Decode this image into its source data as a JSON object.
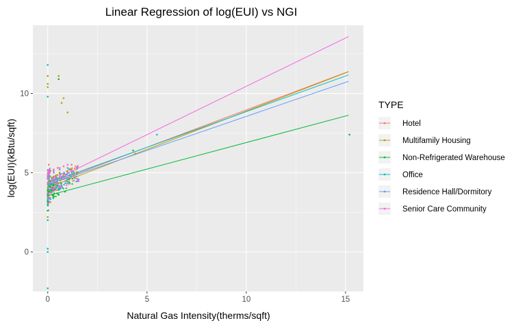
{
  "chart_data": {
    "type": "scatter",
    "title": "Linear Regression of log(EUI) vs NGI",
    "xlabel": "Natural Gas Intensity(therms/sqft)",
    "ylabel": "log(EUI)(kBtu/sqft)",
    "xlim": [
      -0.75,
      15.9
    ],
    "ylim": [
      -2.5,
      14.3
    ],
    "x_ticks": [
      0,
      5,
      10,
      15
    ],
    "y_ticks": [
      0,
      5,
      10
    ],
    "grid": true,
    "legend_position": "right",
    "legend": {
      "title": "TYPE",
      "entries": [
        "Hotel",
        "Multifamily Housing",
        "Non-Refrigerated Warehouse",
        "Office",
        "Residence Hall/Dormitory",
        "Senior Care Community"
      ]
    },
    "series": [
      {
        "name": "Hotel",
        "color": "#F8766D",
        "fit": {
          "intercept": 4.25,
          "slope": 0.471,
          "x_range": [
            0,
            15.15
          ]
        },
        "points": [
          [
            0.0,
            4.8
          ],
          [
            0.1,
            5.0
          ],
          [
            0.3,
            5.2
          ],
          [
            0.5,
            5.3
          ],
          [
            0.8,
            5.4
          ],
          [
            1.2,
            5.5
          ],
          [
            1.5,
            5.4
          ],
          [
            0.0,
            4.3
          ],
          [
            0.05,
            5.5
          ]
        ]
      },
      {
        "name": "Multifamily Housing",
        "color": "#B79F00",
        "fit": {
          "intercept": 4.05,
          "slope": 0.483,
          "x_range": [
            0,
            15.15
          ]
        },
        "points": [
          [
            0.0,
            10.4
          ],
          [
            0.0,
            10.6
          ],
          [
            0.0,
            11.1
          ],
          [
            0.55,
            11.1
          ],
          [
            0.7,
            9.4
          ],
          [
            0.8,
            9.7
          ],
          [
            1.0,
            8.8
          ],
          [
            0.0,
            4.1
          ],
          [
            0.0,
            3.5
          ],
          [
            0.0,
            2.2
          ],
          [
            0.05,
            4.6
          ],
          [
            0.1,
            4.2
          ],
          [
            0.15,
            4.5
          ],
          [
            0.2,
            4.7
          ],
          [
            0.3,
            4.4
          ],
          [
            0.4,
            4.8
          ],
          [
            0.5,
            4.6
          ],
          [
            0.6,
            5.0
          ],
          [
            0.8,
            4.9
          ],
          [
            1.0,
            5.1
          ],
          [
            1.2,
            5.2
          ],
          [
            1.5,
            5.0
          ],
          [
            4.4,
            6.2
          ]
        ]
      },
      {
        "name": "Non-Refrigerated Warehouse",
        "color": "#00BA38",
        "fit": {
          "intercept": 3.55,
          "slope": 0.335,
          "x_range": [
            0,
            15.15
          ]
        },
        "points": [
          [
            0.55,
            10.9
          ],
          [
            0.0,
            3.6
          ],
          [
            0.0,
            3.2
          ],
          [
            0.0,
            2.6
          ],
          [
            0.0,
            3.9
          ],
          [
            0.05,
            3.8
          ],
          [
            0.1,
            4.1
          ],
          [
            0.2,
            3.9
          ],
          [
            0.3,
            4.2
          ],
          [
            4.3,
            6.4
          ],
          [
            15.2,
            7.4
          ]
        ]
      },
      {
        "name": "Office",
        "color": "#00BFC4",
        "fit": {
          "intercept": 4.35,
          "slope": 0.45,
          "x_range": [
            0,
            15.15
          ]
        },
        "points": [
          [
            0.0,
            11.8
          ],
          [
            0.0,
            9.8
          ],
          [
            0.0,
            0.2
          ],
          [
            0.0,
            0.0
          ],
          [
            0.0,
            -2.3
          ],
          [
            0.0,
            2.0
          ],
          [
            0.0,
            3.0
          ],
          [
            0.05,
            4.2
          ],
          [
            0.1,
            4.5
          ],
          [
            0.2,
            4.3
          ],
          [
            0.4,
            4.6
          ],
          [
            5.5,
            7.4
          ]
        ]
      },
      {
        "name": "Residence Hall/Dormitory",
        "color": "#619CFF",
        "fit": {
          "intercept": 4.25,
          "slope": 0.43,
          "x_range": [
            0,
            15.15
          ]
        },
        "points": [
          [
            0.0,
            4.6
          ],
          [
            0.1,
            4.8
          ],
          [
            0.3,
            5.0
          ],
          [
            0.6,
            5.2
          ],
          [
            1.0,
            5.3
          ],
          [
            1.5,
            5.3
          ]
        ]
      },
      {
        "name": "Senior Care Community",
        "color": "#F564E3",
        "fit": {
          "intercept": 4.35,
          "slope": 0.61,
          "x_range": [
            0,
            15.15
          ]
        },
        "points": [
          [
            0.0,
            4.7
          ],
          [
            0.1,
            5.0
          ],
          [
            0.3,
            5.1
          ],
          [
            0.6,
            5.3
          ],
          [
            1.0,
            5.5
          ]
        ]
      }
    ]
  }
}
